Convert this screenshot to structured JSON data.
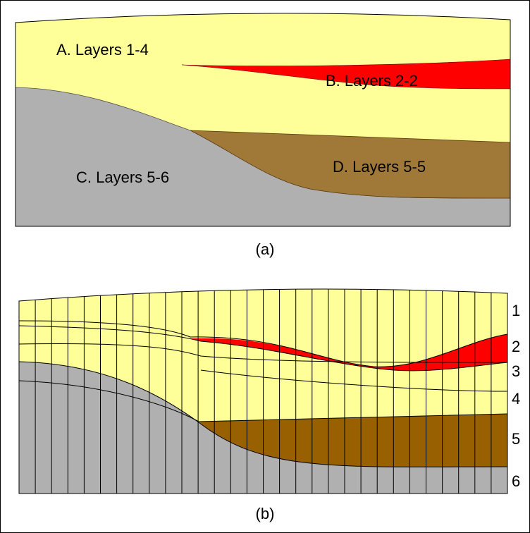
{
  "panel_a": {
    "caption": "(a)",
    "regions": [
      {
        "label": "A. Layers 1-4"
      },
      {
        "label": "B. Layers 2-2"
      },
      {
        "label": "C. Layers 5-6"
      },
      {
        "label": "D. Layers 5-5"
      }
    ]
  },
  "panel_b": {
    "caption": "(b)",
    "layer_numbers": [
      "1",
      "2",
      "3",
      "4",
      "5",
      "6"
    ]
  }
}
